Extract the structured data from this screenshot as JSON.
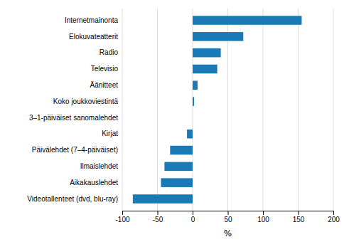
{
  "chart_data": {
    "type": "bar",
    "orientation": "horizontal",
    "categories": [
      "Videotallenteet (dvd, blu-ray)",
      "Aikakauslehdet",
      "Ilmaislehdet",
      "Päivälehdet (7–4-päiväiset)",
      "Kirjat",
      "3–1-päiväiset sanomalehdet",
      "Koko joukkoviestintä",
      "Äänitteet",
      "Televisio",
      "Radio",
      "Elokuvateatterit",
      "Internetmainonta"
    ],
    "values": [
      -85,
      -45,
      -40,
      -32,
      -8,
      0,
      2,
      7,
      35,
      40,
      72,
      155
    ],
    "color": "#1a7ab5",
    "xlabel": "%",
    "xlim": [
      -100,
      200
    ],
    "xticks": [
      -100,
      -50,
      0,
      50,
      100,
      150,
      200
    ],
    "grid": true
  }
}
